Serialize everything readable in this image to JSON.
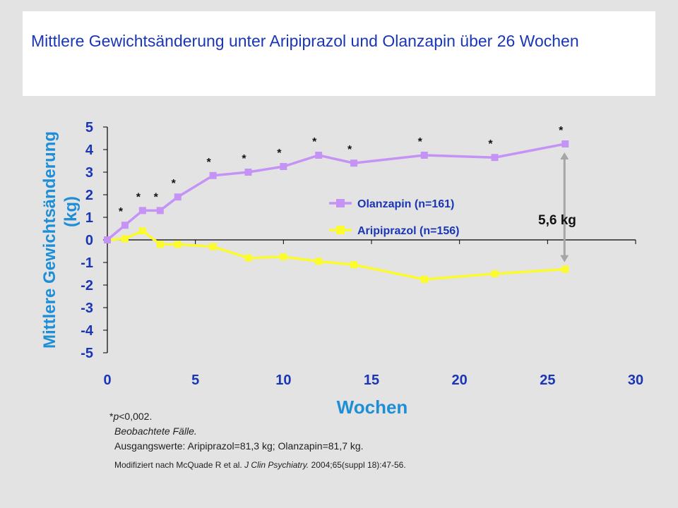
{
  "title": "Mittlere Gewichtsänderung unter Aripiprazol und Olanzapin über 26 Wochen",
  "colors": {
    "background": "#e3e3e3",
    "title": "#1a36b4",
    "axis_label": "#1e8fd6",
    "tick_label": "#1a36b4",
    "olanzapin": "#c593f5",
    "aripiprazol": "#fbfb2e",
    "arrow": "#a6a6a6"
  },
  "chart_data": {
    "type": "line",
    "xlabel": "Wochen",
    "ylabel": "Mittlere Gewichtsänderung (kg)",
    "xlim": [
      0,
      30
    ],
    "ylim": [
      -5,
      5
    ],
    "xticks": [
      "0",
      "5",
      "10",
      "15",
      "20",
      "25",
      "30"
    ],
    "yticks": [
      "5",
      "4",
      "3",
      "2",
      "1",
      "0",
      "-1",
      "-2",
      "-3",
      "-4",
      "-5"
    ],
    "grid": false,
    "legend_position": "center-right",
    "series": [
      {
        "name": "Olanzapin (n=161)",
        "color": "#c593f5",
        "x": [
          0,
          1,
          2,
          3,
          4,
          6,
          8,
          10,
          12,
          14,
          18,
          22,
          26
        ],
        "y": [
          0,
          0.65,
          1.3,
          1.3,
          1.9,
          2.85,
          3.0,
          3.25,
          3.75,
          3.4,
          3.75,
          3.65,
          4.25
        ]
      },
      {
        "name": "Aripiprazol (n=156)",
        "color": "#fbfb2e",
        "x": [
          0,
          1,
          2,
          3,
          4,
          6,
          8,
          10,
          12,
          14,
          18,
          22,
          26
        ],
        "y": [
          0,
          0.05,
          0.4,
          -0.2,
          -0.2,
          -0.3,
          -0.8,
          -0.75,
          -0.95,
          -1.1,
          -1.75,
          -1.5,
          -1.3
        ]
      }
    ],
    "significance_marker": "*",
    "significance_weeks": [
      1,
      2,
      3,
      4,
      6,
      8,
      10,
      12,
      14,
      18,
      22,
      26
    ],
    "difference_label": "5,6 kg"
  },
  "footnotes": {
    "p_prefix": "*",
    "p_italic": "p",
    "p_value": "<0,002.",
    "observed": "Beobachtete Fälle.",
    "baseline": "Ausgangswerte: Aripiprazol=81,3 kg; Olanzapin=81,7 kg.",
    "source_before": "Modifiziert nach McQuade R et al. ",
    "source_journal": "J Clin Psychiatry.",
    "source_after": " 2004;65(suppl 18):47-56."
  }
}
